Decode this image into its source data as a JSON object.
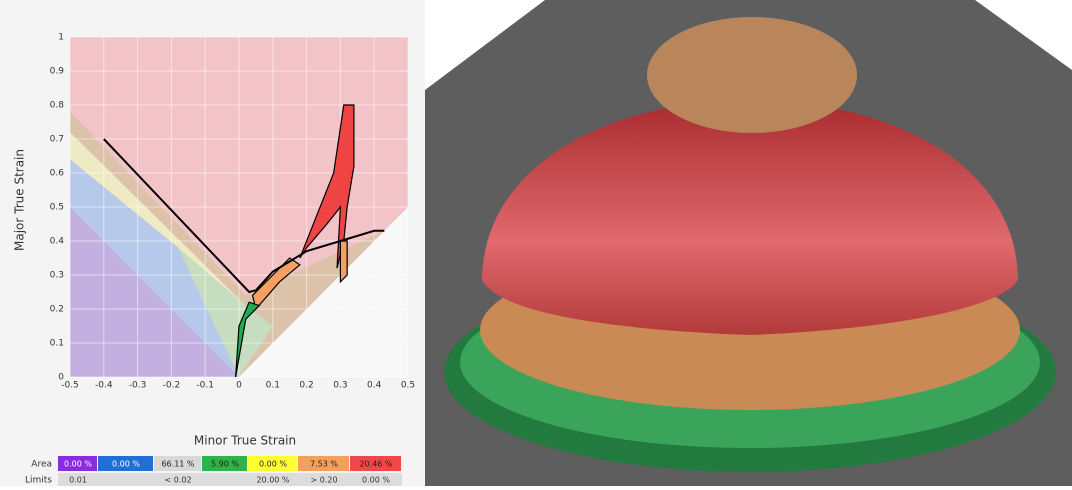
{
  "chart_data": {
    "type": "area",
    "xlabel": "Minor True Strain",
    "ylabel": "Major True Strain",
    "xlim": [
      -0.5,
      0.5
    ],
    "ylim": [
      0,
      1
    ],
    "xticks": [
      -0.5,
      -0.4,
      -0.3,
      -0.2,
      -0.1,
      0,
      0.1,
      0.2,
      0.3,
      0.4,
      0.5
    ],
    "yticks": [
      0,
      0.1,
      0.2,
      0.3,
      0.4,
      0.5,
      0.6,
      0.7,
      0.8,
      0.9,
      1
    ],
    "grid": true,
    "background": "#f2c4c8",
    "zones": [
      {
        "color": "#dcc2a8",
        "x": [
          -0.5,
          0.02,
          0.43,
          0.5,
          0.5,
          -0.5
        ],
        "values": [
          0.78,
          0.24,
          0.43,
          0.5,
          0,
          0
        ]
      },
      {
        "color": "#eeeac4",
        "x": [
          -0.5,
          0.02,
          -0.18,
          -0.5
        ],
        "values": [
          0.72,
          0.21,
          0.38,
          0.64
        ]
      },
      {
        "color": "#b7c9ea",
        "x": [
          -0.5,
          -0.18,
          0,
          -0.5
        ],
        "values": [
          0.64,
          0.38,
          0,
          0
        ]
      },
      {
        "color": "#c6ddc0",
        "x": [
          -0.18,
          0.02,
          0.1,
          0
        ],
        "values": [
          0.38,
          0.21,
          0.15,
          0
        ]
      },
      {
        "color": "#c4b0e0",
        "x": [
          -0.5,
          0,
          -0.5
        ],
        "values": [
          0.5,
          0,
          0
        ]
      },
      {
        "color": "#f8f8f8",
        "x": [
          0,
          0.5,
          0.5
        ],
        "values": [
          0,
          0.5,
          0
        ]
      }
    ],
    "curve": {
      "color": "#000000",
      "x": [
        -0.4,
        0.03,
        0.05,
        0.1,
        0.2,
        0.3,
        0.4,
        0.43
      ],
      "values": [
        0.7,
        0.25,
        0.255,
        0.31,
        0.37,
        0.4,
        0.43,
        0.43
      ]
    },
    "clouds": [
      {
        "color": "#ee4444",
        "x": [
          0.18,
          0.22,
          0.28,
          0.31,
          0.34,
          0.34,
          0.32,
          0.31,
          0.29,
          0.3,
          0.26,
          0.2
        ],
        "values": [
          0.35,
          0.45,
          0.6,
          0.8,
          0.8,
          0.62,
          0.5,
          0.4,
          0.32,
          0.5,
          0.45,
          0.38
        ]
      },
      {
        "color": "#f4a060",
        "x": [
          0.05,
          0.12,
          0.18,
          0.15,
          0.1,
          0.04
        ],
        "values": [
          0.2,
          0.28,
          0.33,
          0.35,
          0.3,
          0.24
        ]
      },
      {
        "color": "#f4a060",
        "x": [
          0.3,
          0.32,
          0.32,
          0.3
        ],
        "values": [
          0.28,
          0.3,
          0.4,
          0.4
        ]
      },
      {
        "color": "#22aa55",
        "x": [
          -0.01,
          0.02,
          0.06,
          0.03,
          0.0,
          -0.01
        ],
        "values": [
          0,
          0.17,
          0.21,
          0.22,
          0.15,
          0
        ]
      }
    ]
  },
  "area_table": {
    "label": "Area",
    "values": [
      "0.00 %",
      "0.00 %",
      "66.11 %",
      "5.90 %",
      "0.00 %",
      "7.53 %",
      "20.46 %"
    ],
    "colors": [
      "#8a2be2",
      "#1e6fd8",
      "#d8d8d8",
      "#2db34a",
      "#ffff33",
      "#f5a05a",
      "#f04848"
    ]
  },
  "limits_table": {
    "label": "Limits",
    "values": [
      "0.01",
      "< 0.02",
      "20.00 %",
      "> 0.20",
      "0.00 %"
    ]
  }
}
